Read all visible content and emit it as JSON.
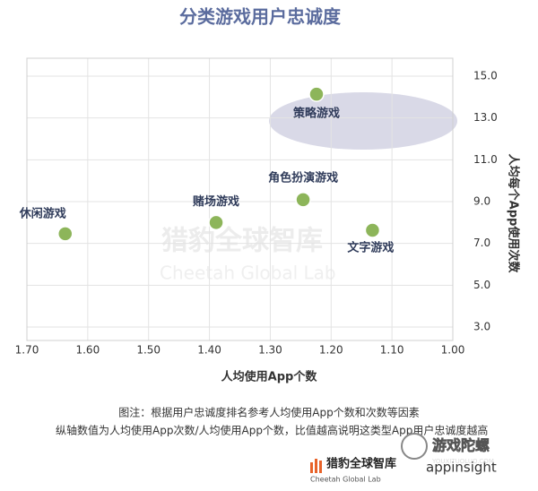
{
  "chart_data": {
    "type": "scatter",
    "title": "分类游戏用户忠诚度",
    "x_label": "人均使用App个数",
    "y_label": "人均每个App使用次数",
    "labels": [
      "休闲游戏",
      "赌场游戏",
      "角色扮演游戏",
      "策略游戏",
      "文字游戏"
    ],
    "x": [
      1.637,
      1.389,
      1.246,
      1.224,
      1.132
    ],
    "y": [
      7.46,
      8.0,
      9.09,
      14.14,
      7.63
    ],
    "color": "#8db55a",
    "xlim": [
      1.7,
      1.0
    ],
    "xticks": [
      {
        "value": 1.7,
        "label": "1.70"
      },
      {
        "value": 1.6,
        "label": "1.60"
      },
      {
        "value": 1.5,
        "label": "1.50"
      },
      {
        "value": 1.4,
        "label": "1.40"
      },
      {
        "value": 1.3,
        "label": "1.30"
      },
      {
        "value": 1.2,
        "label": "1.20"
      },
      {
        "value": 1.1,
        "label": "1.10"
      },
      {
        "value": 1.0,
        "label": "1.00"
      }
    ],
    "ylim": [
      3.0,
      15.0
    ],
    "yticks": [
      {
        "value": 3,
        "label": "3.0"
      },
      {
        "value": 5,
        "label": "5.0"
      },
      {
        "value": 7,
        "label": "7.0"
      },
      {
        "value": 9,
        "label": "9.0"
      },
      {
        "value": 11,
        "label": "11.0"
      },
      {
        "value": 13,
        "label": "13.0"
      },
      {
        "value": 15,
        "label": "15.0"
      }
    ],
    "grid": true,
    "notes": [
      "图注：根据用户忠诚度排名参考人均使用App个数和次数等因素",
      "纵轴数值为人均使用App次数/人均使用App个数，比值越高说明这类型App用户忠诚度越高"
    ],
    "watermark": [
      "猎豹全球智库",
      "Cheetah Global Lab"
    ],
    "branding": [
      "猎豹全球智库",
      "Cheetah Global Lab",
      "appinsight",
      "游戏陀螺",
      "YOUXITUOLUO.COM"
    ]
  }
}
